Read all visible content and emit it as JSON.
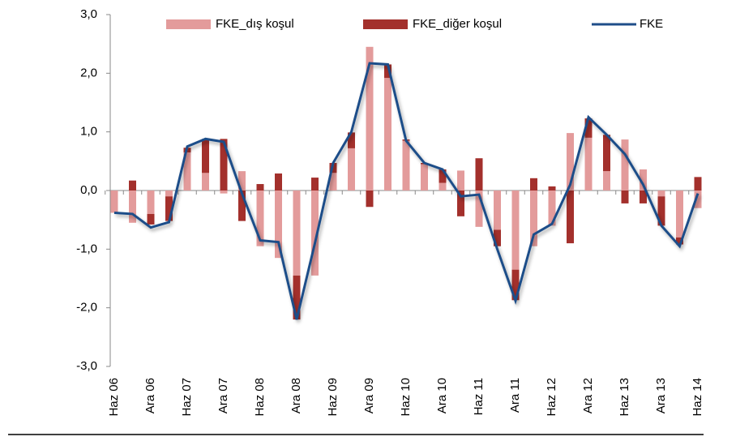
{
  "chart_data": {
    "type": "bar",
    "categories": [
      "Haz 06",
      null,
      "Ara 06",
      null,
      "Haz 07",
      null,
      "Ara 07",
      null,
      "Haz 08",
      null,
      "Ara 08",
      null,
      "Haz 09",
      null,
      "Ara 09",
      null,
      "Haz 10",
      null,
      "Ara 10",
      null,
      "Haz 11",
      null,
      "Ara 11",
      null,
      "Haz 12",
      null,
      "Ara 12",
      null,
      "Haz 13",
      null,
      "Ara 13",
      null,
      "Haz 14"
    ],
    "series": [
      {
        "name": "FKE_dış koşul",
        "type": "bar",
        "color": "#e39b9b",
        "values": [
          -0.38,
          -0.55,
          -0.4,
          -0.1,
          0.65,
          0.3,
          -0.05,
          0.33,
          -0.95,
          -1.15,
          -1.45,
          -1.45,
          0.3,
          0.72,
          2.45,
          1.92,
          0.85,
          0.45,
          0.13,
          0.34,
          -0.62,
          -0.67,
          -1.35,
          -0.95,
          -0.6,
          0.98,
          0.9,
          0.33,
          0.87,
          0.36,
          -0.1,
          -0.8,
          -0.3
        ]
      },
      {
        "name": "FKE_diğer koşul",
        "type": "bar",
        "color": "#a3302c",
        "values": [
          0,
          0.17,
          -0.18,
          -0.42,
          0.08,
          0.58,
          0.88,
          -0.52,
          0.11,
          0.29,
          -0.75,
          0.22,
          0.17,
          0.27,
          -0.28,
          0.23,
          0.02,
          0.02,
          0.23,
          -0.44,
          0.55,
          -0.28,
          -0.52,
          0.21,
          0.07,
          -0.9,
          0.33,
          0.62,
          -0.22,
          -0.22,
          -0.5,
          -0.12,
          0.23
        ]
      },
      {
        "name": "FKE",
        "type": "line",
        "color": "#1f4e89",
        "values": [
          -0.38,
          -0.4,
          -0.63,
          -0.54,
          0.75,
          0.88,
          0.83,
          -0.05,
          -0.85,
          -0.88,
          -2.2,
          -0.9,
          0.47,
          1.0,
          2.17,
          2.15,
          0.85,
          0.47,
          0.36,
          -0.1,
          -0.07,
          -1.0,
          -1.88,
          -0.75,
          -0.57,
          0.1,
          1.25,
          0.95,
          0.62,
          0.1,
          -0.6,
          -0.95,
          -0.05
        ]
      }
    ],
    "ylim": [
      -3,
      3
    ],
    "yticks": [
      {
        "value": -3,
        "label": "-3,0"
      },
      {
        "value": -2,
        "label": "-2,0"
      },
      {
        "value": -1,
        "label": "-1,0"
      },
      {
        "value": 0,
        "label": "0,0"
      },
      {
        "value": 1,
        "label": "1,0"
      },
      {
        "value": 2,
        "label": "2,0"
      },
      {
        "value": 3,
        "label": "3,0"
      }
    ],
    "grid": false
  }
}
